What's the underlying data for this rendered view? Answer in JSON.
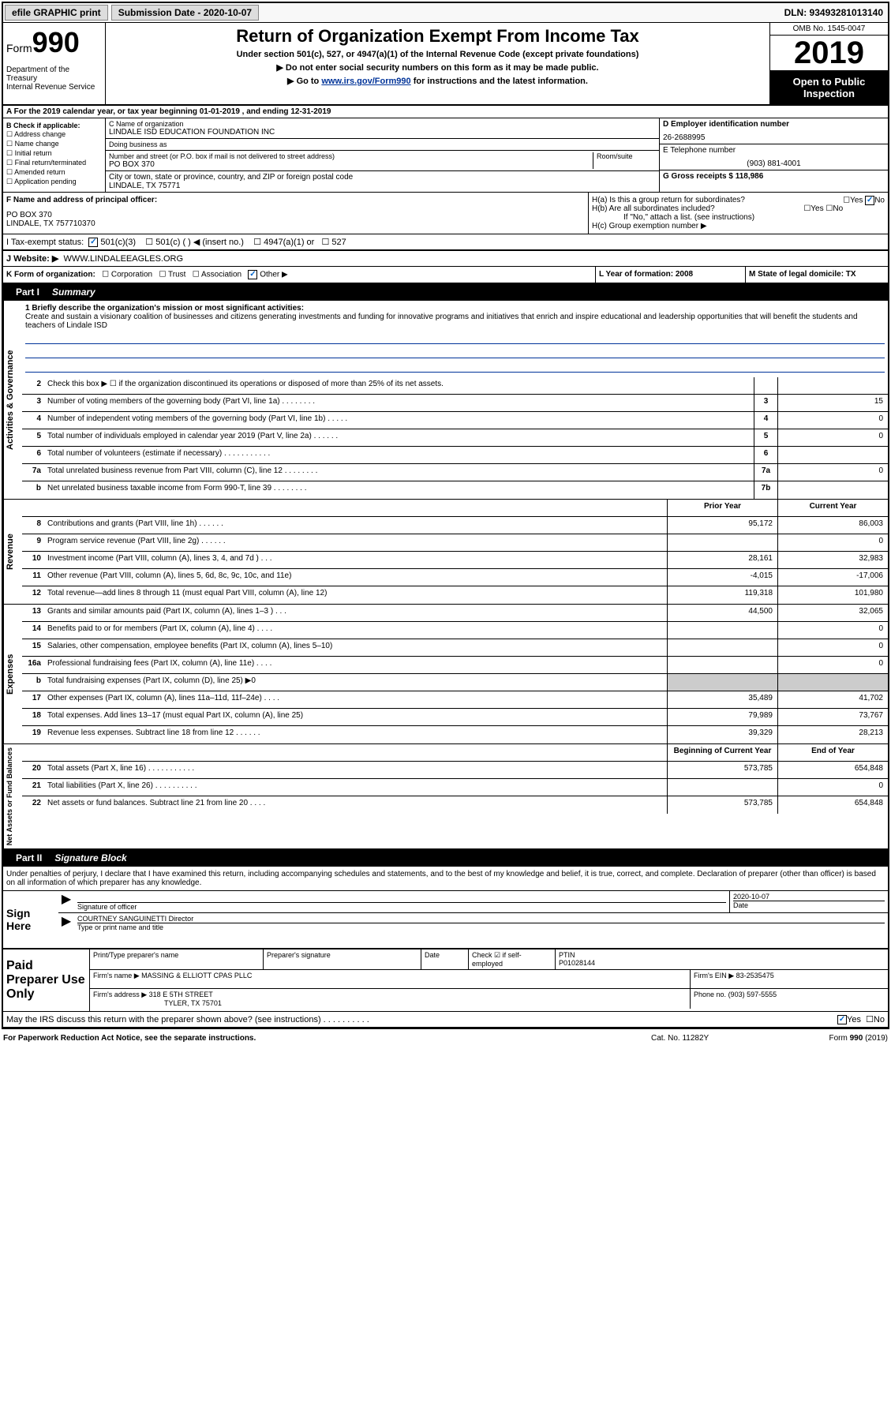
{
  "topbar": {
    "efile": "efile GRAPHIC print",
    "submission_label": "Submission Date - 2020-10-07",
    "dln": "DLN: 93493281013140"
  },
  "header": {
    "form_label": "Form",
    "form_num": "990",
    "dept": "Department of the Treasury\nInternal Revenue Service",
    "title": "Return of Organization Exempt From Income Tax",
    "subtitle": "Under section 501(c), 527, or 4947(a)(1) of the Internal Revenue Code (except private foundations)",
    "note1": "▶ Do not enter social security numbers on this form as it may be made public.",
    "note2_pre": "▶ Go to ",
    "note2_link": "www.irs.gov/Form990",
    "note2_post": " for instructions and the latest information.",
    "omb": "OMB No. 1545-0047",
    "year": "2019",
    "open_public": "Open to Public Inspection"
  },
  "line_a": "A For the 2019 calendar year, or tax year beginning 01-01-2019   , and ending 12-31-2019",
  "section_b": {
    "label": "B Check if applicable:",
    "opts": [
      "Address change",
      "Name change",
      "Initial return",
      "Final return/terminated",
      "Amended return",
      "Application pending"
    ]
  },
  "section_c": {
    "name_label": "C Name of organization",
    "name": "LINDALE ISD EDUCATION FOUNDATION INC",
    "dba_label": "Doing business as",
    "addr_label": "Number and street (or P.O. box if mail is not delivered to street address)",
    "room_label": "Room/suite",
    "addr": "PO BOX 370",
    "city_label": "City or town, state or province, country, and ZIP or foreign postal code",
    "city": "LINDALE, TX  75771"
  },
  "section_d": {
    "label": "D Employer identification number",
    "value": "26-2688995"
  },
  "section_e": {
    "label": "E Telephone number",
    "value": "(903) 881-4001"
  },
  "section_g": {
    "label": "G Gross receipts $ 118,986"
  },
  "section_f": {
    "label": "F  Name and address of principal officer:",
    "addr1": "PO BOX 370",
    "addr2": "LINDALE, TX  757710370"
  },
  "section_h": {
    "a": "H(a)  Is this a group return for subordinates?",
    "b": "H(b)  Are all subordinates included?",
    "b_note": "If \"No,\" attach a list. (see instructions)",
    "c": "H(c)  Group exemption number ▶"
  },
  "section_i": {
    "label": "I   Tax-exempt status:",
    "opts": [
      "501(c)(3)",
      "501(c) (  ) ◀ (insert no.)",
      "4947(a)(1) or",
      "527"
    ]
  },
  "section_j": {
    "label": "J   Website: ▶",
    "value": "WWW.LINDALEEAGLES.ORG"
  },
  "section_k": {
    "label": "K Form of organization:",
    "opts": [
      "Corporation",
      "Trust",
      "Association",
      "Other ▶"
    ]
  },
  "section_l": {
    "label": "L Year of formation: 2008"
  },
  "section_m": {
    "label": "M State of legal domicile: TX"
  },
  "part1": {
    "num": "Part I",
    "title": "Summary"
  },
  "mission": {
    "label": "1  Briefly describe the organization's mission or most significant activities:",
    "text": "Create and sustain a visionary coalition of businesses and citizens generating investments and funding for innovative programs and initiatives that enrich and inspire educational and leadership opportunities that will benefit the students and teachers of Lindale ISD"
  },
  "gov_rows": [
    {
      "num": "2",
      "text": "Check this box ▶ ☐  if the organization discontinued its operations or disposed of more than 25% of its net assets.",
      "box": "",
      "val": ""
    },
    {
      "num": "3",
      "text": "Number of voting members of the governing body (Part VI, line 1a)   .    .    .    .    .    .    .    .",
      "box": "3",
      "val": "15"
    },
    {
      "num": "4",
      "text": "Number of independent voting members of the governing body (Part VI, line 1b)  .    .    .    .    .",
      "box": "4",
      "val": "0"
    },
    {
      "num": "5",
      "text": "Total number of individuals employed in calendar year 2019 (Part V, line 2a)  .    .    .    .    .    .",
      "box": "5",
      "val": "0"
    },
    {
      "num": "6",
      "text": "Total number of volunteers (estimate if necessary)    .    .    .    .    .    .    .    .    .    .    .",
      "box": "6",
      "val": ""
    },
    {
      "num": "7a",
      "text": "Total unrelated business revenue from Part VIII, column (C), line 12  .    .    .    .    .    .    .    .",
      "box": "7a",
      "val": "0"
    },
    {
      "num": "b",
      "text": "Net unrelated business taxable income from Form 990-T, line 39   .    .    .    .    .    .    .    .",
      "box": "7b",
      "val": ""
    }
  ],
  "py_cy_header": {
    "py": "Prior Year",
    "cy": "Current Year"
  },
  "revenue_rows": [
    {
      "num": "8",
      "text": "Contributions and grants (Part VIII, line 1h)   .    .    .    .    .    .",
      "py": "95,172",
      "cy": "86,003"
    },
    {
      "num": "9",
      "text": "Program service revenue (Part VIII, line 2g)   .    .    .    .    .    .",
      "py": "",
      "cy": "0"
    },
    {
      "num": "10",
      "text": "Investment income (Part VIII, column (A), lines 3, 4, and 7d )   .    .    .",
      "py": "28,161",
      "cy": "32,983"
    },
    {
      "num": "11",
      "text": "Other revenue (Part VIII, column (A), lines 5, 6d, 8c, 9c, 10c, and 11e)",
      "py": "-4,015",
      "cy": "-17,006"
    },
    {
      "num": "12",
      "text": "Total revenue—add lines 8 through 11 (must equal Part VIII, column (A), line 12)",
      "py": "119,318",
      "cy": "101,980"
    }
  ],
  "expense_rows": [
    {
      "num": "13",
      "text": "Grants and similar amounts paid (Part IX, column (A), lines 1–3 )  .    .    .",
      "py": "44,500",
      "cy": "32,065"
    },
    {
      "num": "14",
      "text": "Benefits paid to or for members (Part IX, column (A), line 4)  .    .    .    .",
      "py": "",
      "cy": "0"
    },
    {
      "num": "15",
      "text": "Salaries, other compensation, employee benefits (Part IX, column (A), lines 5–10)",
      "py": "",
      "cy": "0"
    },
    {
      "num": "16a",
      "text": "Professional fundraising fees (Part IX, column (A), line 11e)  .    .    .    .",
      "py": "",
      "cy": "0"
    },
    {
      "num": "b",
      "text": "Total fundraising expenses (Part IX, column (D), line 25) ▶0",
      "py": "shaded",
      "cy": "shaded"
    },
    {
      "num": "17",
      "text": "Other expenses (Part IX, column (A), lines 11a–11d, 11f–24e)  .    .    .    .",
      "py": "35,489",
      "cy": "41,702"
    },
    {
      "num": "18",
      "text": "Total expenses. Add lines 13–17 (must equal Part IX, column (A), line 25)",
      "py": "79,989",
      "cy": "73,767"
    },
    {
      "num": "19",
      "text": "Revenue less expenses. Subtract line 18 from line 12 .    .    .    .    .    .",
      "py": "39,329",
      "cy": "28,213"
    }
  ],
  "na_header": {
    "py": "Beginning of Current Year",
    "cy": "End of Year"
  },
  "netassets_rows": [
    {
      "num": "20",
      "text": "Total assets (Part X, line 16)  .    .    .    .    .    .    .    .    .    .    .",
      "py": "573,785",
      "cy": "654,848"
    },
    {
      "num": "21",
      "text": "Total liabilities (Part X, line 26)  .    .    .    .    .    .    .    .    .    .",
      "py": "",
      "cy": "0"
    },
    {
      "num": "22",
      "text": "Net assets or fund balances. Subtract line 21 from line 20  .    .    .    .",
      "py": "573,785",
      "cy": "654,848"
    }
  ],
  "part2": {
    "num": "Part II",
    "title": "Signature Block"
  },
  "sig_declaration": "Under penalties of perjury, I declare that I have examined this return, including accompanying schedules and statements, and to the best of my knowledge and belief, it is true, correct, and complete. Declaration of preparer (other than officer) is based on all information of which preparer has any knowledge.",
  "sign_here": "Sign Here",
  "sig_officer_label": "Signature of officer",
  "sig_date": "2020-10-07",
  "sig_date_label": "Date",
  "sig_name": "COURTNEY SANGUINETTI  Director",
  "sig_name_label": "Type or print name and title",
  "paid_prep": "Paid Preparer Use Only",
  "prep": {
    "print_label": "Print/Type preparer's name",
    "sig_label": "Preparer's signature",
    "date_label": "Date",
    "check_label": "Check ☑ if self-employed",
    "ptin_label": "PTIN",
    "ptin": "P01028144",
    "firm_name_label": "Firm's name    ▶",
    "firm_name": "MASSING & ELLIOTT CPAS PLLC",
    "firm_ein_label": "Firm's EIN ▶",
    "firm_ein": "83-2535475",
    "firm_addr_label": "Firm's address ▶",
    "firm_addr1": "318 E 5TH STREET",
    "firm_addr2": "TYLER, TX  75701",
    "phone_label": "Phone no.",
    "phone": "(903) 597-5555"
  },
  "discuss": "May the IRS discuss this return with the preparer shown above? (see instructions)   .    .    .    .    .    .    .    .    .    .",
  "footer": {
    "left": "For Paperwork Reduction Act Notice, see the separate instructions.",
    "mid": "Cat. No. 11282Y",
    "right": "Form 990 (2019)"
  }
}
